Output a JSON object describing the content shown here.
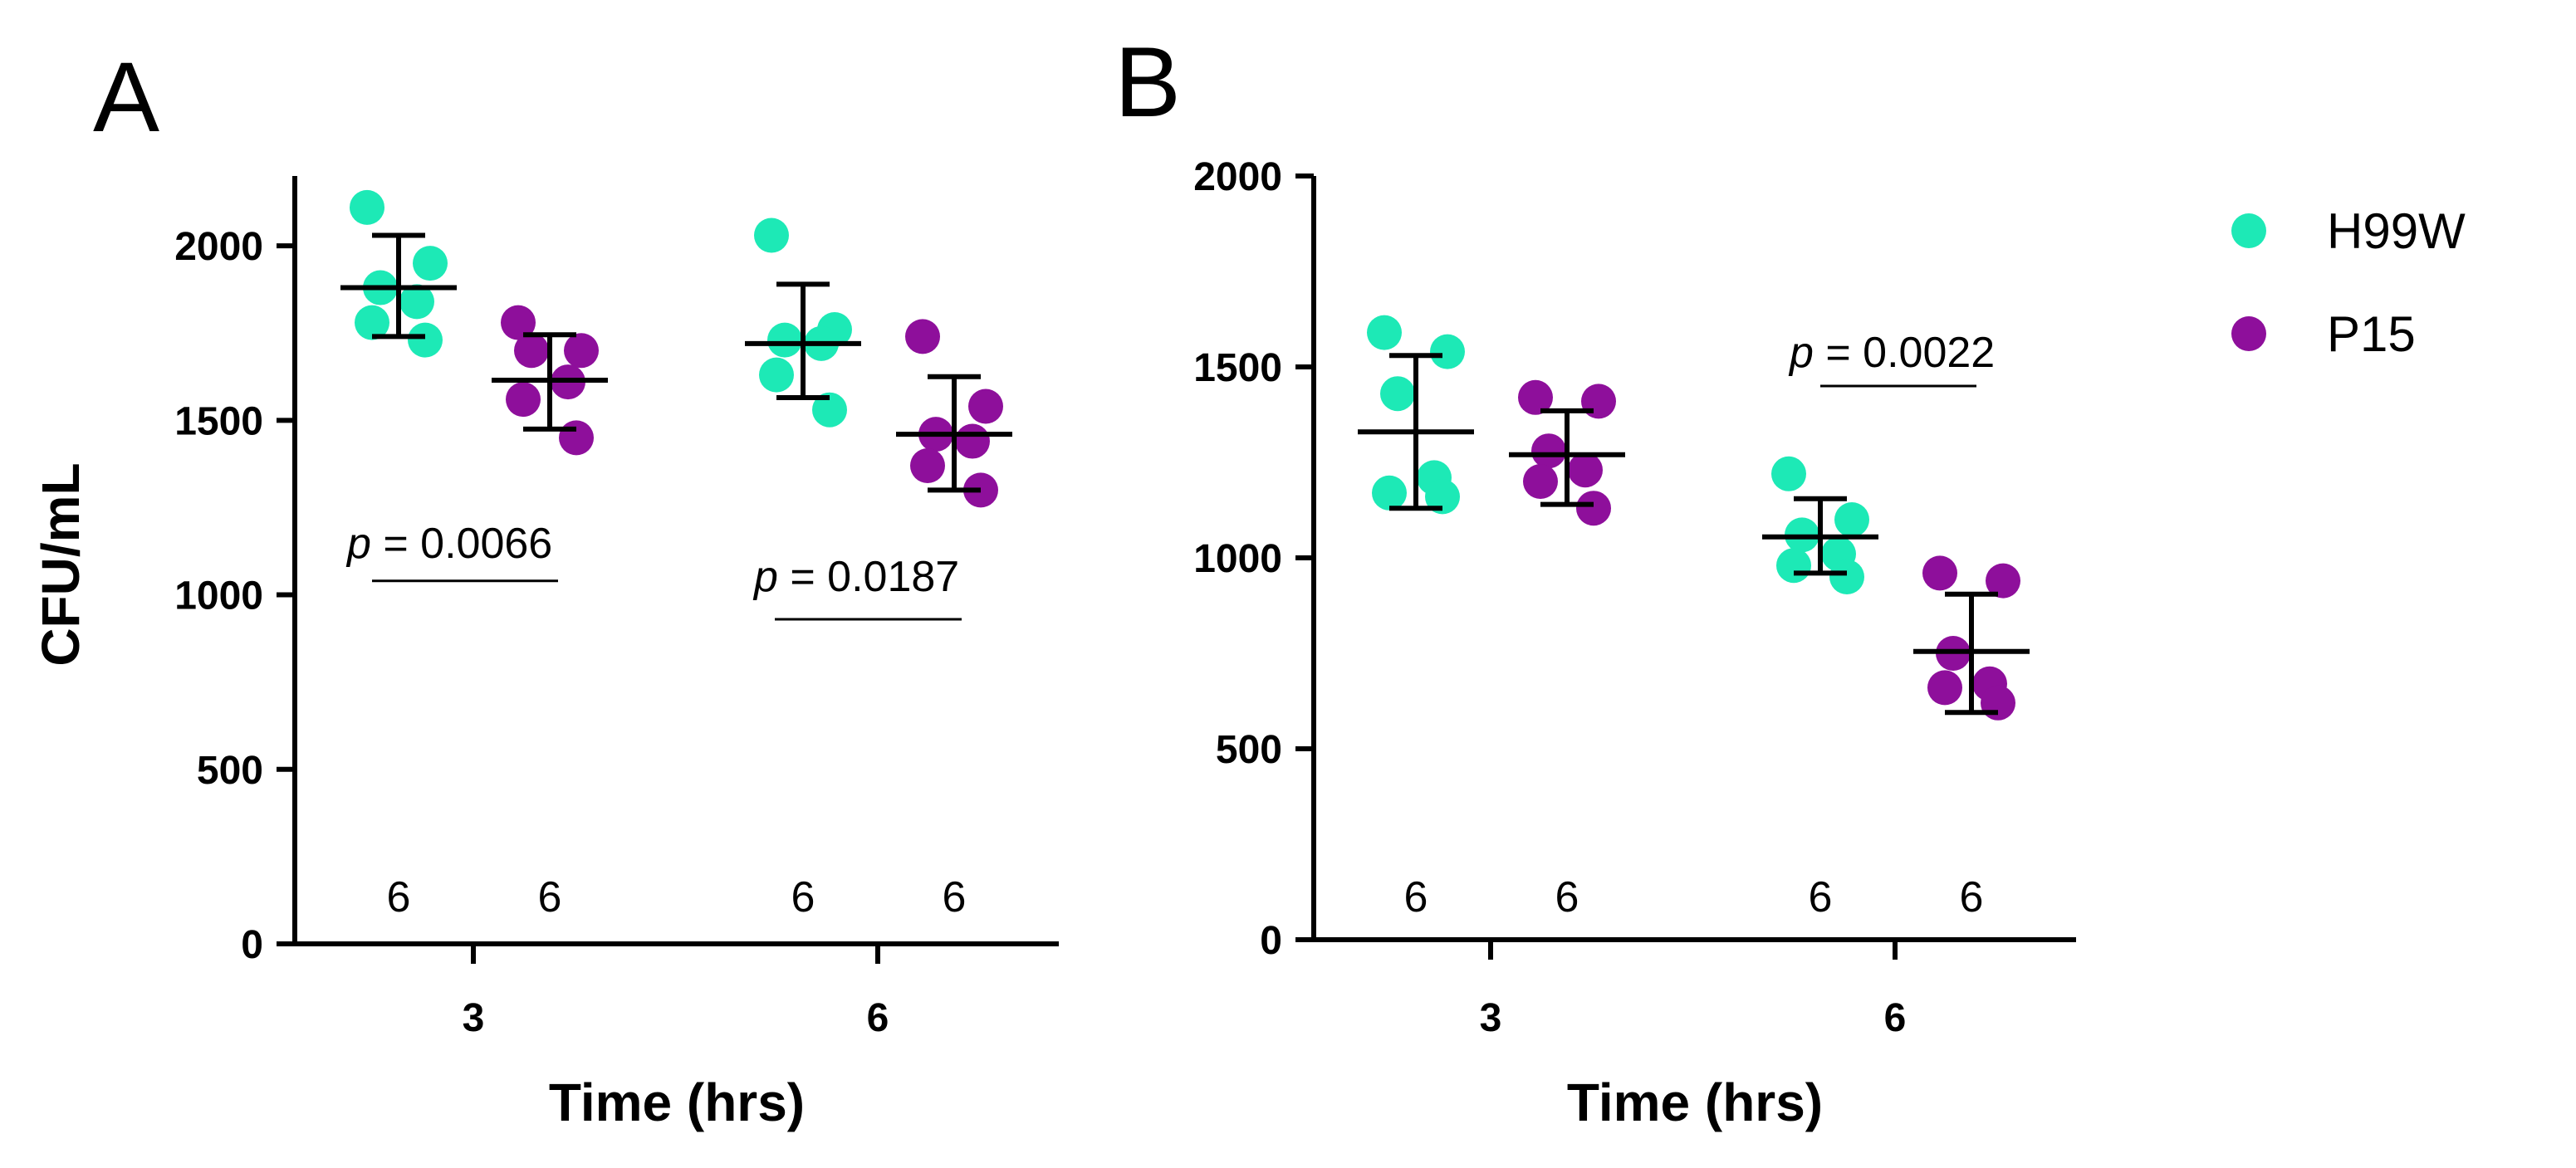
{
  "legend": [
    {
      "name": "H99W",
      "color": "#1de9b6"
    },
    {
      "name": "P15",
      "color": "#8e0f9b"
    }
  ],
  "chart_data": [
    {
      "type": "scatter",
      "panel": "A",
      "xlabel": "Time (hrs)",
      "ylabel": "CFU/mL",
      "ylim": [
        0,
        2200
      ],
      "yticks": [
        "0",
        "500",
        "1000",
        "1500",
        "2000"
      ],
      "categories": [
        "3",
        "6"
      ],
      "series": [
        {
          "name": "H99W",
          "color": "#1de9b6",
          "groups": [
            {
              "category": "3",
              "points": [
                2110,
                1950,
                1880,
                1840,
                1780,
                1730
              ],
              "mean": 1880,
              "sd_low": 1740,
              "sd_high": 2030,
              "n": "6"
            },
            {
              "category": "6",
              "points": [
                2030,
                1760,
                1730,
                1720,
                1630,
                1530
              ],
              "mean": 1720,
              "sd_low": 1565,
              "sd_high": 1890,
              "n": "6"
            }
          ]
        },
        {
          "name": "P15",
          "color": "#8e0f9b",
          "groups": [
            {
              "category": "3",
              "points": [
                1780,
                1700,
                1700,
                1610,
                1560,
                1450
              ],
              "mean": 1615,
              "sd_low": 1475,
              "sd_high": 1745,
              "n": "6"
            },
            {
              "category": "6",
              "points": [
                1740,
                1540,
                1460,
                1440,
                1370,
                1300
              ],
              "mean": 1460,
              "sd_low": 1300,
              "sd_high": 1625,
              "n": "6"
            }
          ]
        }
      ],
      "annotations": [
        {
          "category": "3",
          "p_label": "p",
          "p_value": "= 0.0066",
          "y": 1040
        },
        {
          "category": "6",
          "p_label": "p",
          "p_value": "= 0.0187",
          "y": 930
        }
      ]
    },
    {
      "type": "scatter",
      "panel": "B",
      "xlabel": "Time (hrs)",
      "ylabel": "",
      "ylim": [
        0,
        2000
      ],
      "yticks": [
        "0",
        "500",
        "1000",
        "1500",
        "2000"
      ],
      "categories": [
        "3",
        "6"
      ],
      "series": [
        {
          "name": "H99W",
          "color": "#1de9b6",
          "groups": [
            {
              "category": "3",
              "points": [
                1590,
                1540,
                1430,
                1210,
                1170,
                1160
              ],
              "mean": 1330,
              "sd_low": 1130,
              "sd_high": 1530,
              "n": "6"
            },
            {
              "category": "6",
              "points": [
                1220,
                1100,
                1060,
                1010,
                980,
                950
              ],
              "mean": 1055,
              "sd_low": 960,
              "sd_high": 1155,
              "n": "6"
            }
          ]
        },
        {
          "name": "P15",
          "color": "#8e0f9b",
          "groups": [
            {
              "category": "3",
              "points": [
                1420,
                1410,
                1280,
                1230,
                1200,
                1130
              ],
              "mean": 1270,
              "sd_low": 1140,
              "sd_high": 1385,
              "n": "6"
            },
            {
              "category": "6",
              "points": [
                960,
                940,
                750,
                670,
                660,
                620
              ],
              "mean": 755,
              "sd_low": 595,
              "sd_high": 905,
              "n": "6"
            }
          ]
        }
      ],
      "annotations": [
        {
          "category": "6",
          "p_label": "p",
          "p_value": "= 0.0022",
          "y": 1450
        }
      ]
    }
  ]
}
